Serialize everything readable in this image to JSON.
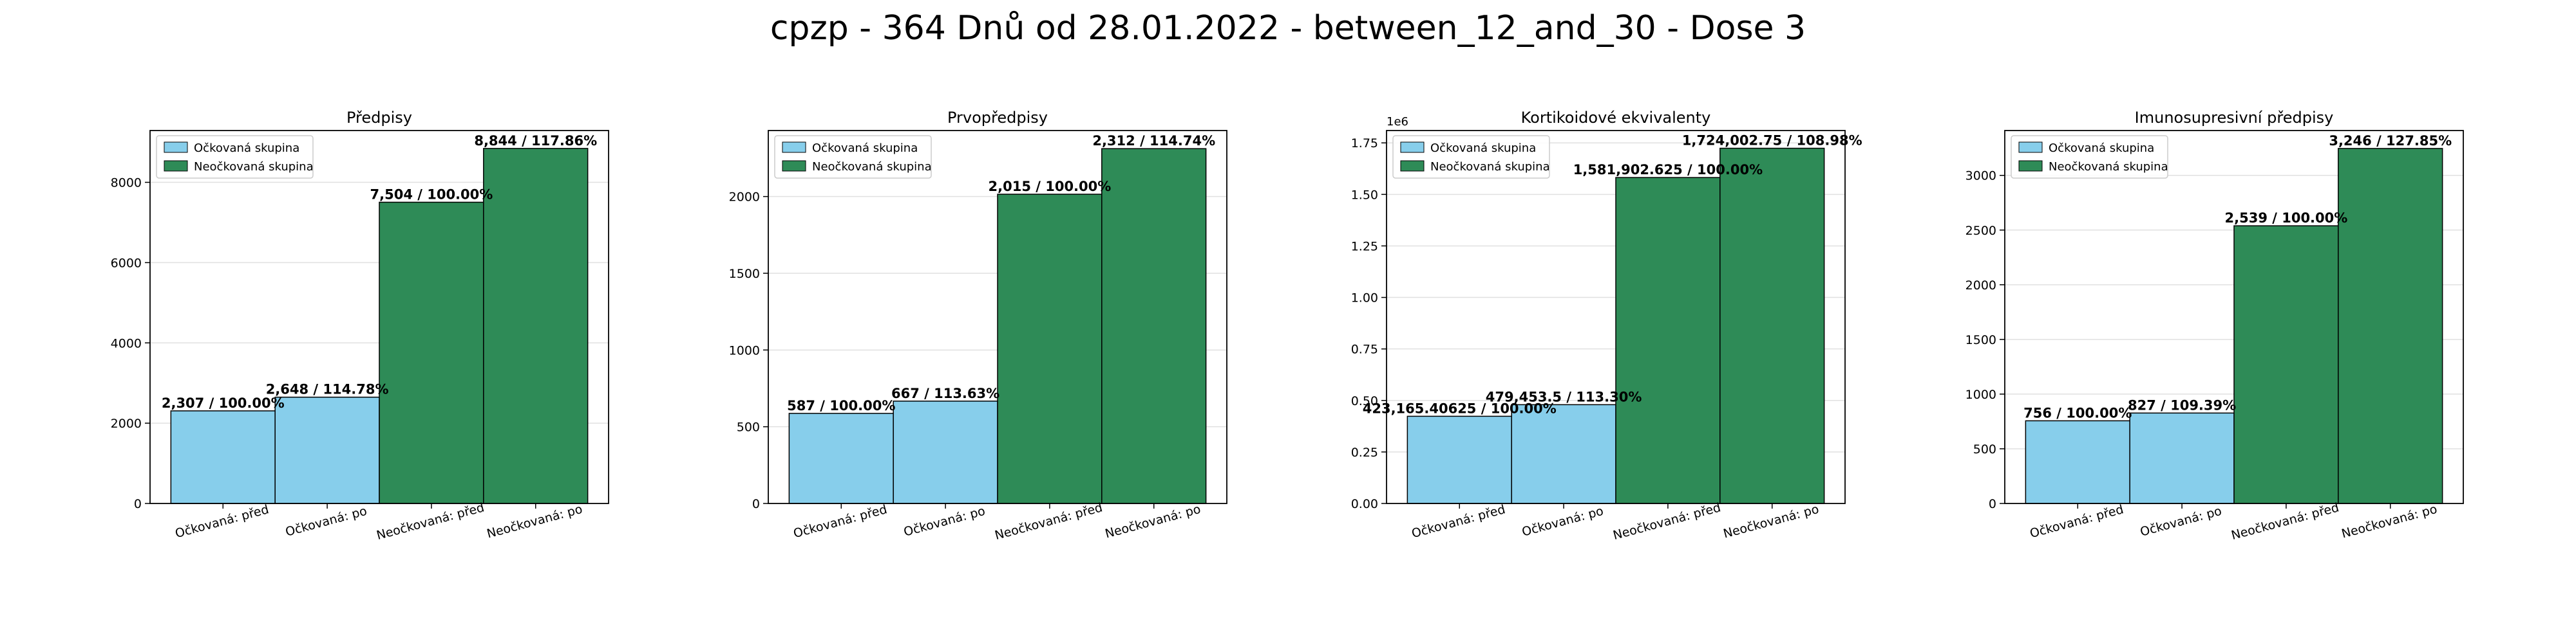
{
  "figure": {
    "title": "cpzp - 364 Dnů od 28.01.2022 - between_12_and_30 - Dose 3"
  },
  "colors": {
    "vaccinated": "#87ceeb",
    "unvaccinated": "#2e8b57",
    "edge": "#000000",
    "grid": "#e0e0e0"
  },
  "chart_data": [
    {
      "type": "bar",
      "title": "Předpisy",
      "categories": [
        "Očkovaná: před",
        "Očkovaná: po",
        "Neočkovaná: před",
        "Neočkovaná: po"
      ],
      "values": [
        2307,
        2648,
        7504,
        8844
      ],
      "bar_labels": [
        "2,307 / 100.00%",
        "2,648 / 114.78%",
        "7,504 / 100.00%",
        "8,844 / 117.86%"
      ],
      "groups": [
        "vaccinated",
        "vaccinated",
        "unvaccinated",
        "unvaccinated"
      ],
      "ylim": [
        0,
        9290
      ],
      "yticks": [
        0,
        2000,
        4000,
        6000,
        8000
      ],
      "ytick_labels": [
        "0",
        "2000",
        "4000",
        "6000",
        "8000"
      ],
      "offset_text": "",
      "grid": "horizontal",
      "legend": {
        "location": "top-left",
        "entries": [
          "Očkovaná skupina",
          "Neočkovaná skupina"
        ]
      }
    },
    {
      "type": "bar",
      "title": "Prvopředpisy",
      "categories": [
        "Očkovaná: před",
        "Očkovaná: po",
        "Neočkovaná: před",
        "Neočkovaná: po"
      ],
      "values": [
        587,
        667,
        2015,
        2312
      ],
      "bar_labels": [
        "587 / 100.00%",
        "667 / 113.63%",
        "2,015 / 100.00%",
        "2,312 / 114.74%"
      ],
      "groups": [
        "vaccinated",
        "vaccinated",
        "unvaccinated",
        "unvaccinated"
      ],
      "ylim": [
        0,
        2430
      ],
      "yticks": [
        0,
        500,
        1000,
        1500,
        2000
      ],
      "ytick_labels": [
        "0",
        "500",
        "1000",
        "1500",
        "2000"
      ],
      "offset_text": "",
      "grid": "horizontal",
      "legend": {
        "location": "top-left",
        "entries": [
          "Očkovaná skupina",
          "Neočkovaná skupina"
        ]
      }
    },
    {
      "type": "bar",
      "title": "Kortikoidové ekvivalenty",
      "categories": [
        "Očkovaná: před",
        "Očkovaná: po",
        "Neočkovaná: před",
        "Neočkovaná: po"
      ],
      "values": [
        423165.40625,
        479453.5,
        1581902.625,
        1724002.75
      ],
      "bar_labels": [
        "423,165.40625 / 100.00%",
        "479,453.5 / 113.30%",
        "1,581,902.625 / 100.00%",
        "1,724,002.75 / 108.98%"
      ],
      "groups": [
        "vaccinated",
        "vaccinated",
        "unvaccinated",
        "unvaccinated"
      ],
      "ylim": [
        0,
        1810000
      ],
      "yticks": [
        0,
        250000,
        500000,
        750000,
        1000000,
        1250000,
        1500000,
        1750000
      ],
      "ytick_labels": [
        "0.00",
        "0.25",
        "0.50",
        "0.75",
        "1.00",
        "1.25",
        "1.50",
        "1.75"
      ],
      "offset_text": "1e6",
      "grid": "horizontal",
      "legend": {
        "location": "top-left",
        "entries": [
          "Očkovaná skupina",
          "Neočkovaná skupina"
        ]
      }
    },
    {
      "type": "bar",
      "title": "Imunosupresivní předpisy",
      "categories": [
        "Očkovaná: před",
        "Očkovaná: po",
        "Neočkovaná: před",
        "Neočkovaná: po"
      ],
      "values": [
        756,
        827,
        2539,
        3246
      ],
      "bar_labels": [
        "756 / 100.00%",
        "827 / 109.39%",
        "2,539 / 100.00%",
        "3,246 / 127.85%"
      ],
      "groups": [
        "vaccinated",
        "vaccinated",
        "unvaccinated",
        "unvaccinated"
      ],
      "ylim": [
        0,
        3410
      ],
      "yticks": [
        0,
        500,
        1000,
        1500,
        2000,
        2500,
        3000
      ],
      "ytick_labels": [
        "0",
        "500",
        "1000",
        "1500",
        "2000",
        "2500",
        "3000"
      ],
      "offset_text": "",
      "grid": "horizontal",
      "legend": {
        "location": "top-left",
        "entries": [
          "Očkovaná skupina",
          "Neočkovaná skupina"
        ]
      }
    }
  ]
}
